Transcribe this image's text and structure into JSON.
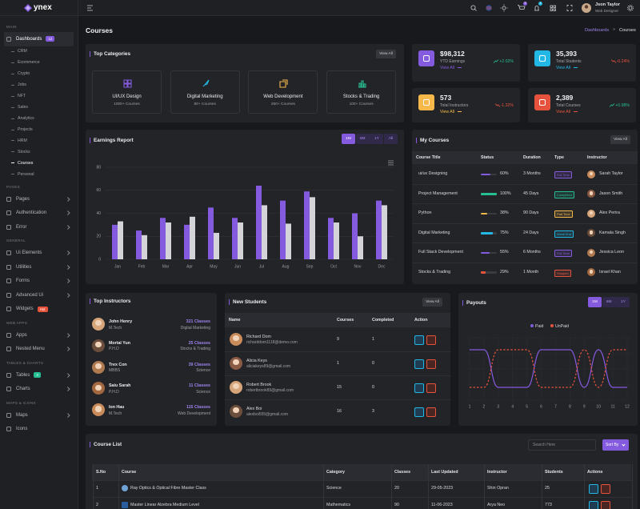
{
  "header": {
    "user_name": "Json Taylor",
    "user_role": "Web Designer",
    "cart_count": 5,
    "notification_count": 4
  },
  "sidebar": {
    "logo": "ynex",
    "items": [
      {
        "kind": "section",
        "label": "MAIN"
      },
      {
        "kind": "menu",
        "label": "Dashboards",
        "badge": 12,
        "badge_color": "#845adf",
        "active": true
      },
      {
        "kind": "sub",
        "label": "CRM"
      },
      {
        "kind": "sub",
        "label": "Ecommerce"
      },
      {
        "kind": "sub",
        "label": "Crypto"
      },
      {
        "kind": "sub",
        "label": "Jobs"
      },
      {
        "kind": "sub",
        "label": "NFT"
      },
      {
        "kind": "sub",
        "label": "Sales"
      },
      {
        "kind": "sub",
        "label": "Analytics"
      },
      {
        "kind": "sub",
        "label": "Projects"
      },
      {
        "kind": "sub",
        "label": "HRM"
      },
      {
        "kind": "sub",
        "label": "Stocks"
      },
      {
        "kind": "sub",
        "label": "Courses",
        "active": true
      },
      {
        "kind": "sub",
        "label": "Personal"
      },
      {
        "kind": "section",
        "label": "PAGES"
      },
      {
        "kind": "menu",
        "label": "Pages",
        "expandable": true
      },
      {
        "kind": "menu",
        "label": "Authentication",
        "expandable": true
      },
      {
        "kind": "menu",
        "label": "Error",
        "expandable": true
      },
      {
        "kind": "section",
        "label": "GENERAL"
      },
      {
        "kind": "menu",
        "label": "Ui Elements",
        "expandable": true
      },
      {
        "kind": "menu",
        "label": "Utilities",
        "expandable": true
      },
      {
        "kind": "menu",
        "label": "Forms",
        "expandable": true
      },
      {
        "kind": "menu",
        "label": "Advanced Ui",
        "expandable": true
      },
      {
        "kind": "menu",
        "label": "Widgets",
        "badge": "Hot",
        "badge_color": "#e6533c"
      },
      {
        "kind": "section",
        "label": "WEB APPS"
      },
      {
        "kind": "menu",
        "label": "Apps",
        "expandable": true
      },
      {
        "kind": "menu",
        "label": "Nested Menu",
        "expandable": true
      },
      {
        "kind": "section",
        "label": "TABLES & CHARTS"
      },
      {
        "kind": "menu",
        "label": "Tables",
        "badge": 3,
        "badge_color": "#26bf94",
        "expandable": true
      },
      {
        "kind": "menu",
        "label": "Charts",
        "expandable": true
      },
      {
        "kind": "section",
        "label": "MAPS & ICONS"
      },
      {
        "kind": "menu",
        "label": "Maps",
        "expandable": true
      },
      {
        "kind": "menu",
        "label": "Icons"
      }
    ]
  },
  "page": {
    "title": "Courses",
    "breadcrumb": [
      "Dashboards",
      "Courses"
    ]
  },
  "top_categories": {
    "title": "Top Categories",
    "action": "View All",
    "items": [
      {
        "name": "UI/UX Design",
        "count": "1000+ Courses",
        "icon_color": "#845adf"
      },
      {
        "name": "Digital Marketing",
        "count": "80+ Courses",
        "icon_color": "#23b7e5"
      },
      {
        "name": "Web Development",
        "count": "250+ Courses",
        "icon_color": "#f5b849"
      },
      {
        "name": "Stocks & Trading",
        "count": "100+ Courses",
        "icon_color": "#26bf94"
      }
    ]
  },
  "stats": [
    {
      "value": "$98,312",
      "label": "YTD Earnings",
      "change": "+2.02%",
      "trend": "up",
      "link": "View All",
      "color": "#845adf"
    },
    {
      "value": "35,393",
      "label": "Total Students",
      "change": "-0.24%",
      "trend": "down",
      "link": "View All",
      "color": "#23b7e5"
    },
    {
      "value": "573",
      "label": "Total Instructors",
      "change": "-1.32%",
      "trend": "down",
      "link": "View All",
      "color": "#f5b849"
    },
    {
      "value": "2,389",
      "label": "Total Courses",
      "change": "+0.98%",
      "trend": "up",
      "link": "View All",
      "color": "#e6533c"
    }
  ],
  "earnings_report": {
    "title": "Earnings Report",
    "periods": [
      "1M",
      "6M",
      "1Y",
      "All"
    ],
    "active_period": 0,
    "chart": {
      "type": "bar",
      "categories": [
        "Jan",
        "Feb",
        "Mar",
        "Apr",
        "May",
        "Jun",
        "Jul",
        "Aug",
        "Sep",
        "Oct",
        "Nov",
        "Dec"
      ],
      "series": [
        {
          "color": "#845adf",
          "values": [
            30,
            25,
            36,
            30,
            45,
            36,
            64,
            51,
            59,
            36,
            40,
            51
          ]
        },
        {
          "color": "#d4d4d8",
          "values": [
            33,
            21,
            32,
            37,
            23,
            32,
            47,
            31,
            54,
            32,
            20,
            47
          ]
        }
      ],
      "ylim": [
        0,
        80
      ],
      "yticks": [
        0,
        20,
        40,
        60,
        80
      ],
      "grid": true
    }
  },
  "my_courses": {
    "title": "My Courses",
    "action": "View All",
    "columns": [
      "Course Title",
      "Status",
      "Duration",
      "Type",
      "Instructor"
    ],
    "rows": [
      {
        "course": "ui/ux Designing",
        "progress": 60,
        "progress_label": "60%",
        "progress_color": "#845adf",
        "duration": "3 Months",
        "type": "Full Time",
        "type_color": "#845adf",
        "instructor": "Sarah Taylor"
      },
      {
        "course": "Project Management",
        "progress": 100,
        "progress_label": "100%",
        "progress_color": "#26bf94",
        "duration": "45 Days",
        "type": "Completed",
        "type_color": "#26bf94",
        "instructor": "Jason Smith"
      },
      {
        "course": "Python",
        "progress": 38,
        "progress_label": "38%",
        "progress_color": "#f5b849",
        "duration": "90 Days",
        "type": "Part Time",
        "type_color": "#f5b849",
        "instructor": "Alex Perira"
      },
      {
        "course": "Digital Marketing",
        "progress": 75,
        "progress_label": "75%",
        "progress_color": "#23b7e5",
        "duration": "24 Days",
        "type": "Week End",
        "type_color": "#23b7e5",
        "instructor": "Kamala Singh"
      },
      {
        "course": "Full Stack Development",
        "progress": 55,
        "progress_label": "55%",
        "progress_color": "#845adf",
        "duration": "6 Months",
        "type": "Full Time",
        "type_color": "#845adf",
        "instructor": "Jessica Leon"
      },
      {
        "course": "Stocks & Trading",
        "progress": 29,
        "progress_label": "29%",
        "progress_color": "#e6533c",
        "duration": "1 Month",
        "type": "Stopped",
        "type_color": "#e6533c",
        "instructor": "Israel Khan"
      }
    ]
  },
  "top_instructors": {
    "title": "Top Instructors",
    "items": [
      {
        "name": "John Henry",
        "degree": "M.Tech",
        "classes": "321 Classes",
        "subject": "Digital Marketing"
      },
      {
        "name": "Mortal Yun",
        "degree": "P.H.D",
        "classes": "25 Classes",
        "subject": "Stocks & Trading"
      },
      {
        "name": "Trex Con",
        "degree": "MBBS",
        "classes": "39 Classes",
        "subject": "Science"
      },
      {
        "name": "Saiu Sarah",
        "degree": "P.H.D",
        "classes": "11 Classes",
        "subject": "Science"
      },
      {
        "name": "Ion Hau",
        "degree": "M.Tech",
        "classes": "115 Classes",
        "subject": "Web Development"
      }
    ]
  },
  "new_students": {
    "title": "New Students",
    "action": "View All",
    "columns": [
      "Name",
      "Courses",
      "Completed",
      "Action"
    ],
    "rows": [
      {
        "name": "Richard Dom",
        "email": "richarddom1118@demo.com",
        "courses": 9,
        "completed": 1
      },
      {
        "name": "Alicia Keys",
        "email": "aliciakeys89@gmail.com",
        "courses": 1,
        "completed": 0
      },
      {
        "name": "Robert Brook",
        "email": "robertbrook89@gmail.com",
        "courses": 15,
        "completed": 0
      },
      {
        "name": "Alex Boi",
        "email": "alexboi555@gmail.com",
        "courses": 16,
        "completed": 3
      }
    ]
  },
  "payouts": {
    "title": "Payouts",
    "periods": [
      "1M",
      "6M",
      "1Y"
    ],
    "active_period": 0,
    "chart": {
      "type": "line",
      "x": [
        1,
        2,
        3,
        4,
        5,
        6,
        7,
        8,
        9,
        10,
        11,
        12
      ],
      "xlim": [
        1,
        12
      ],
      "grid": true,
      "series": [
        {
          "name": "Paid",
          "color": "#845adf",
          "dashed": false,
          "values": [
            80,
            80,
            20,
            20,
            20,
            80,
            80,
            80,
            20,
            80,
            20,
            20
          ]
        },
        {
          "name": "UnPaid",
          "color": "#e6533c",
          "dashed": true,
          "values": [
            20,
            20,
            80,
            80,
            80,
            20,
            20,
            20,
            80,
            20,
            80,
            80
          ]
        }
      ]
    }
  },
  "course_list": {
    "title": "Course List",
    "search_placeholder": "Search Here",
    "sort_label": "Sort By",
    "columns": [
      "S.No",
      "Course",
      "Category",
      "Classes",
      "Last Updated",
      "Instructor",
      "Students",
      "Actions"
    ],
    "rows": [
      [
        1,
        "Ray Optics & Optical Fibre Master Class",
        "Science",
        20,
        "29-05-2023",
        "Shin Opran",
        25
      ],
      [
        2,
        "Master Linear Alzebra Medium Level",
        "Mathematics",
        90,
        "11-06-2023",
        "Arya Neo",
        773
      ]
    ]
  }
}
